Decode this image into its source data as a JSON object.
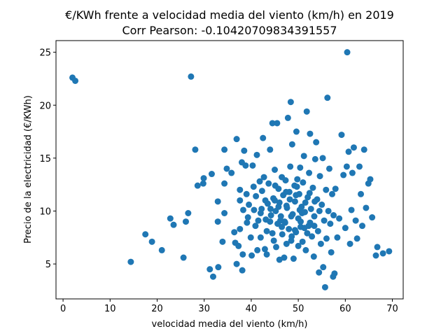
{
  "chart_data": {
    "type": "scatter",
    "title": "€/KWh frente a velocidad media del viento (km/h) en 2019",
    "subtitle": "Corr Pearson: -0.10420709834391557",
    "xlabel": "velocidad media del viento (km/h)",
    "ylabel": "Precio de la electricidad (€/KWh)",
    "xlim": [
      -1.5,
      72.3
    ],
    "ylim": [
      1.7,
      26.1
    ],
    "xticks": [
      0,
      10,
      20,
      30,
      40,
      50,
      60,
      70
    ],
    "yticks": [
      5,
      10,
      15,
      20,
      25
    ],
    "grid": false,
    "marker_color": "#1f77b4",
    "series": [
      {
        "points": [
          [
            2,
            22.6
          ],
          [
            2.6,
            22.3
          ],
          [
            27.2,
            22.7
          ],
          [
            60.4,
            25.0
          ],
          [
            14.4,
            5.2
          ],
          [
            17.5,
            7.8
          ],
          [
            18.9,
            7.1
          ],
          [
            21,
            6.3
          ],
          [
            22.8,
            9.3
          ],
          [
            23.5,
            8.7
          ],
          [
            25.6,
            5.6
          ],
          [
            26.1,
            9.0
          ],
          [
            26.6,
            9.8
          ],
          [
            28.1,
            15.8
          ],
          [
            28.6,
            12.4
          ],
          [
            29.8,
            12.6
          ],
          [
            29.9,
            13.1
          ],
          [
            31.2,
            4.5
          ],
          [
            31.9,
            3.8
          ],
          [
            31.6,
            13.5
          ],
          [
            33,
            4.7
          ],
          [
            32.9,
            9.0
          ],
          [
            32.9,
            10.9
          ],
          [
            33.9,
            7.1
          ],
          [
            34.3,
            9.8
          ],
          [
            34.3,
            12.6
          ],
          [
            34.3,
            15.8
          ],
          [
            34.8,
            14.0
          ],
          [
            35.8,
            13.6
          ],
          [
            36.6,
            7.0
          ],
          [
            36.4,
            8.0
          ],
          [
            36.9,
            5.0
          ],
          [
            36.9,
            16.8
          ],
          [
            37.3,
            6.7
          ],
          [
            37.6,
            8.3
          ],
          [
            37.6,
            11.0
          ],
          [
            37.6,
            12.0
          ],
          [
            38,
            14.6
          ],
          [
            38.1,
            4.4
          ],
          [
            38.2,
            5.9
          ],
          [
            38.3,
            10.1
          ],
          [
            38.5,
            15.7
          ],
          [
            38.8,
            14.3
          ],
          [
            39,
            11.6
          ],
          [
            39.1,
            8.9
          ],
          [
            39.3,
            9.4
          ],
          [
            39.5,
            10.6
          ],
          [
            39.9,
            7.5
          ],
          [
            40.1,
            5.8
          ],
          [
            40.3,
            14.3
          ],
          [
            40.5,
            12.3
          ],
          [
            40.6,
            10.1
          ],
          [
            40.9,
            8.6
          ],
          [
            41,
            11.4
          ],
          [
            41.2,
            15.3
          ],
          [
            41.3,
            6.3
          ],
          [
            41.5,
            9.1
          ],
          [
            41.8,
            12.8
          ],
          [
            42,
            7.5
          ],
          [
            42.2,
            10.2
          ],
          [
            42.3,
            11.9
          ],
          [
            42.5,
            16.9
          ],
          [
            42.7,
            13.2
          ],
          [
            42.9,
            6.4
          ],
          [
            43.1,
            9.2
          ],
          [
            43.3,
            5.9
          ],
          [
            43.3,
            8.1
          ],
          [
            43.5,
            10.7
          ],
          [
            43.7,
            12.6
          ],
          [
            44,
            15.8
          ],
          [
            44.2,
            9.6
          ],
          [
            44.5,
            18.3
          ],
          [
            44.7,
            11.2
          ],
          [
            44.8,
            7.2
          ],
          [
            45,
            13.9
          ],
          [
            45.2,
            10.0
          ],
          [
            45.3,
            6.6
          ],
          [
            45.5,
            18.3
          ],
          [
            45.6,
            8.8
          ],
          [
            45.8,
            12.1
          ],
          [
            46,
            5.4
          ],
          [
            46,
            10.8
          ],
          [
            46.3,
            9.5
          ],
          [
            46.5,
            13.2
          ],
          [
            46.6,
            7.8
          ],
          [
            46.8,
            11.5
          ],
          [
            47,
            5.6
          ],
          [
            47.1,
            9.0
          ],
          [
            47.3,
            12.9
          ],
          [
            47.5,
            6.9
          ],
          [
            47.6,
            10.3
          ],
          [
            47.8,
            18.8
          ],
          [
            48,
            8.3
          ],
          [
            48.1,
            11.8
          ],
          [
            48.3,
            14.2
          ],
          [
            48.4,
            20.3
          ],
          [
            48.5,
            7.2
          ],
          [
            48.7,
            16.3
          ],
          [
            48.8,
            9.7
          ],
          [
            49,
            5.5
          ],
          [
            49.2,
            12.4
          ],
          [
            49.3,
            10.9
          ],
          [
            49.5,
            8.0
          ],
          [
            49.6,
            17.5
          ],
          [
            49.8,
            13.0
          ],
          [
            50,
            9.3
          ],
          [
            50,
            6.7
          ],
          [
            50.2,
            11.6
          ],
          [
            50.4,
            14.1
          ],
          [
            50.5,
            8.5
          ],
          [
            50.7,
            10.4
          ],
          [
            50.9,
            7.1
          ],
          [
            51,
            12.7
          ],
          [
            51.2,
            15.2
          ],
          [
            51.4,
            9.9
          ],
          [
            51.6,
            6.3
          ],
          [
            51.8,
            19.4
          ],
          [
            52,
            11.3
          ],
          [
            52.2,
            8.6
          ],
          [
            52.3,
            13.6
          ],
          [
            52.5,
            17.3
          ],
          [
            52.7,
            10.2
          ],
          [
            52.9,
            7.6
          ],
          [
            53.1,
            12.2
          ],
          [
            53.3,
            5.7
          ],
          [
            53.4,
            9.5
          ],
          [
            53.6,
            14.9
          ],
          [
            53.8,
            16.5
          ],
          [
            54,
            11.1
          ],
          [
            54.2,
            8.1
          ],
          [
            54.4,
            4.2
          ],
          [
            54.6,
            13.3
          ],
          [
            54.8,
            6.9
          ],
          [
            55,
            10.6
          ],
          [
            55.2,
            15.0
          ],
          [
            55.3,
            4.7
          ],
          [
            55.5,
            9.1
          ],
          [
            55.7,
            2.8
          ],
          [
            55.9,
            12.0
          ],
          [
            56,
            7.4
          ],
          [
            56.2,
            20.7
          ],
          [
            56.4,
            10.0
          ],
          [
            56.6,
            14.0
          ],
          [
            56.8,
            8.8
          ],
          [
            57,
            6.1
          ],
          [
            57.2,
            11.6
          ],
          [
            57.4,
            3.8
          ],
          [
            57.5,
            9.6
          ],
          [
            57.7,
            4.1
          ],
          [
            57.9,
            12.1
          ],
          [
            58.3,
            7.5
          ],
          [
            58.7,
            9.3
          ],
          [
            59.2,
            17.2
          ],
          [
            59.6,
            13.4
          ],
          [
            60,
            8.4
          ],
          [
            60.3,
            14.2
          ],
          [
            60.7,
            15.6
          ],
          [
            61,
            6.9
          ],
          [
            61.3,
            10.1
          ],
          [
            61.5,
            13.6
          ],
          [
            61.8,
            16.0
          ],
          [
            62.2,
            9.1
          ],
          [
            62.5,
            7.4
          ],
          [
            63,
            14.2
          ],
          [
            63.3,
            11.6
          ],
          [
            63.6,
            8.6
          ],
          [
            64,
            15.8
          ],
          [
            64.4,
            10.3
          ],
          [
            64.9,
            12.6
          ],
          [
            65.3,
            13.0
          ],
          [
            65.7,
            9.4
          ],
          [
            66.5,
            5.8
          ],
          [
            66.8,
            6.6
          ],
          [
            68,
            6.0
          ],
          [
            69.3,
            6.2
          ],
          [
            44.0,
            9.0
          ],
          [
            45.0,
            11.0
          ],
          [
            46.5,
            8.5
          ],
          [
            47.5,
            10.5
          ],
          [
            48.5,
            9.5
          ],
          [
            49.5,
            11.5
          ],
          [
            50.5,
            9.0
          ],
          [
            51.5,
            10.8
          ],
          [
            52.5,
            8.9
          ],
          [
            53.5,
            10.9
          ],
          [
            44.5,
            7.9
          ],
          [
            45.8,
            10.4
          ],
          [
            47.2,
            8.9
          ],
          [
            48.2,
            11.1
          ],
          [
            49.3,
            8.2
          ],
          [
            50.3,
            10.1
          ],
          [
            51.3,
            8.4
          ],
          [
            52.4,
            11.7
          ],
          [
            53.4,
            8.6
          ],
          [
            54.5,
            10.0
          ],
          [
            42.0,
            9.8
          ],
          [
            43.0,
            11.0
          ],
          [
            44.1,
            10.2
          ],
          [
            45.1,
            12.4
          ],
          [
            46.2,
            9.1
          ],
          [
            47.4,
            11.8
          ],
          [
            48.6,
            7.6
          ],
          [
            49.7,
            12.3
          ],
          [
            50.8,
            9.8
          ],
          [
            51.9,
            7.9
          ]
        ]
      }
    ]
  }
}
